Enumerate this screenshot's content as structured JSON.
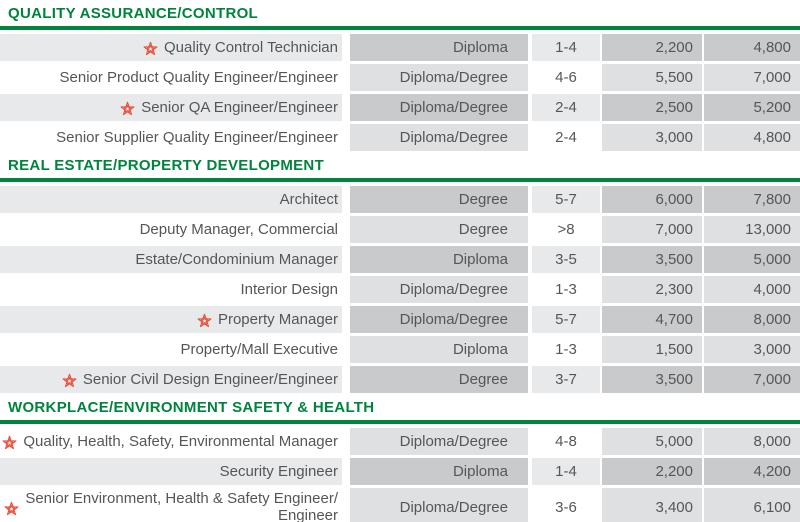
{
  "colors": {
    "section_green": "#00843d",
    "text_dark": "#55565a",
    "star_red": "#e8503c",
    "row_stripe": "#e8e9ea",
    "shaded_col_on_white": "#dfe0e1",
    "shaded_col_on_stripe": "#c9cacc"
  },
  "columns": [
    "job_title",
    "qualification",
    "experience",
    "min_salary",
    "max_salary"
  ],
  "sections": [
    {
      "title": "QUALITY ASSURANCE/CONTROL",
      "rows": [
        {
          "starred": true,
          "striped": true,
          "title": "Quality Control Technician",
          "qualification": "Diploma",
          "experience": "1-4",
          "min": "2,200",
          "max": "4,800"
        },
        {
          "starred": false,
          "striped": false,
          "title": "Senior Product Quality Engineer/Engineer",
          "qualification": "Diploma/Degree",
          "experience": "4-6",
          "min": "5,500",
          "max": "7,000"
        },
        {
          "starred": true,
          "striped": true,
          "title": "Senior QA Engineer/Engineer",
          "qualification": "Diploma/Degree",
          "experience": "2-4",
          "min": "2,500",
          "max": "5,200"
        },
        {
          "starred": false,
          "striped": false,
          "title": "Senior Supplier Quality Engineer/Engineer",
          "qualification": "Diploma/Degree",
          "experience": "2-4",
          "min": "3,000",
          "max": "4,800"
        }
      ]
    },
    {
      "title": "REAL ESTATE/PROPERTY DEVELOPMENT",
      "rows": [
        {
          "starred": false,
          "striped": true,
          "title": "Architect",
          "qualification": "Degree",
          "experience": "5-7",
          "min": "6,000",
          "max": "7,800"
        },
        {
          "starred": false,
          "striped": false,
          "title": "Deputy Manager, Commercial",
          "qualification": "Degree",
          "experience": ">8",
          "min": "7,000",
          "max": "13,000"
        },
        {
          "starred": false,
          "striped": true,
          "title": "Estate/Condominium Manager",
          "qualification": "Diploma",
          "experience": "3-5",
          "min": "3,500",
          "max": "5,000"
        },
        {
          "starred": false,
          "striped": false,
          "title": "Interior Design",
          "qualification": "Diploma/Degree",
          "experience": "1-3",
          "min": "2,300",
          "max": "4,000"
        },
        {
          "starred": true,
          "striped": true,
          "title": "Property Manager",
          "qualification": "Diploma/Degree",
          "experience": "5-7",
          "min": "4,700",
          "max": "8,000"
        },
        {
          "starred": false,
          "striped": false,
          "title": "Property/Mall Executive",
          "qualification": "Diploma",
          "experience": "1-3",
          "min": "1,500",
          "max": "3,000"
        },
        {
          "starred": true,
          "striped": true,
          "title": "Senior Civil Design Engineer/Engineer",
          "qualification": "Degree",
          "experience": "3-7",
          "min": "3,500",
          "max": "7,000"
        }
      ]
    },
    {
      "title": "WORKPLACE/ENVIRONMENT SAFETY & HEALTH",
      "rows": [
        {
          "starred": true,
          "striped": false,
          "title": "Quality, Health, Safety, Environmental Manager",
          "qualification": "Diploma/Degree",
          "experience": "4-8",
          "min": "5,000",
          "max": "8,000"
        },
        {
          "starred": false,
          "striped": true,
          "title": "Security Engineer",
          "qualification": "Diploma",
          "experience": "1-4",
          "min": "2,200",
          "max": "4,200"
        },
        {
          "starred": true,
          "striped": false,
          "twoline": true,
          "title": "Senior Environment, Health & Safety Engineer/\nEngineer",
          "qualification": "Diploma/Degree",
          "experience": "3-6",
          "min": "3,400",
          "max": "6,100"
        }
      ]
    }
  ]
}
